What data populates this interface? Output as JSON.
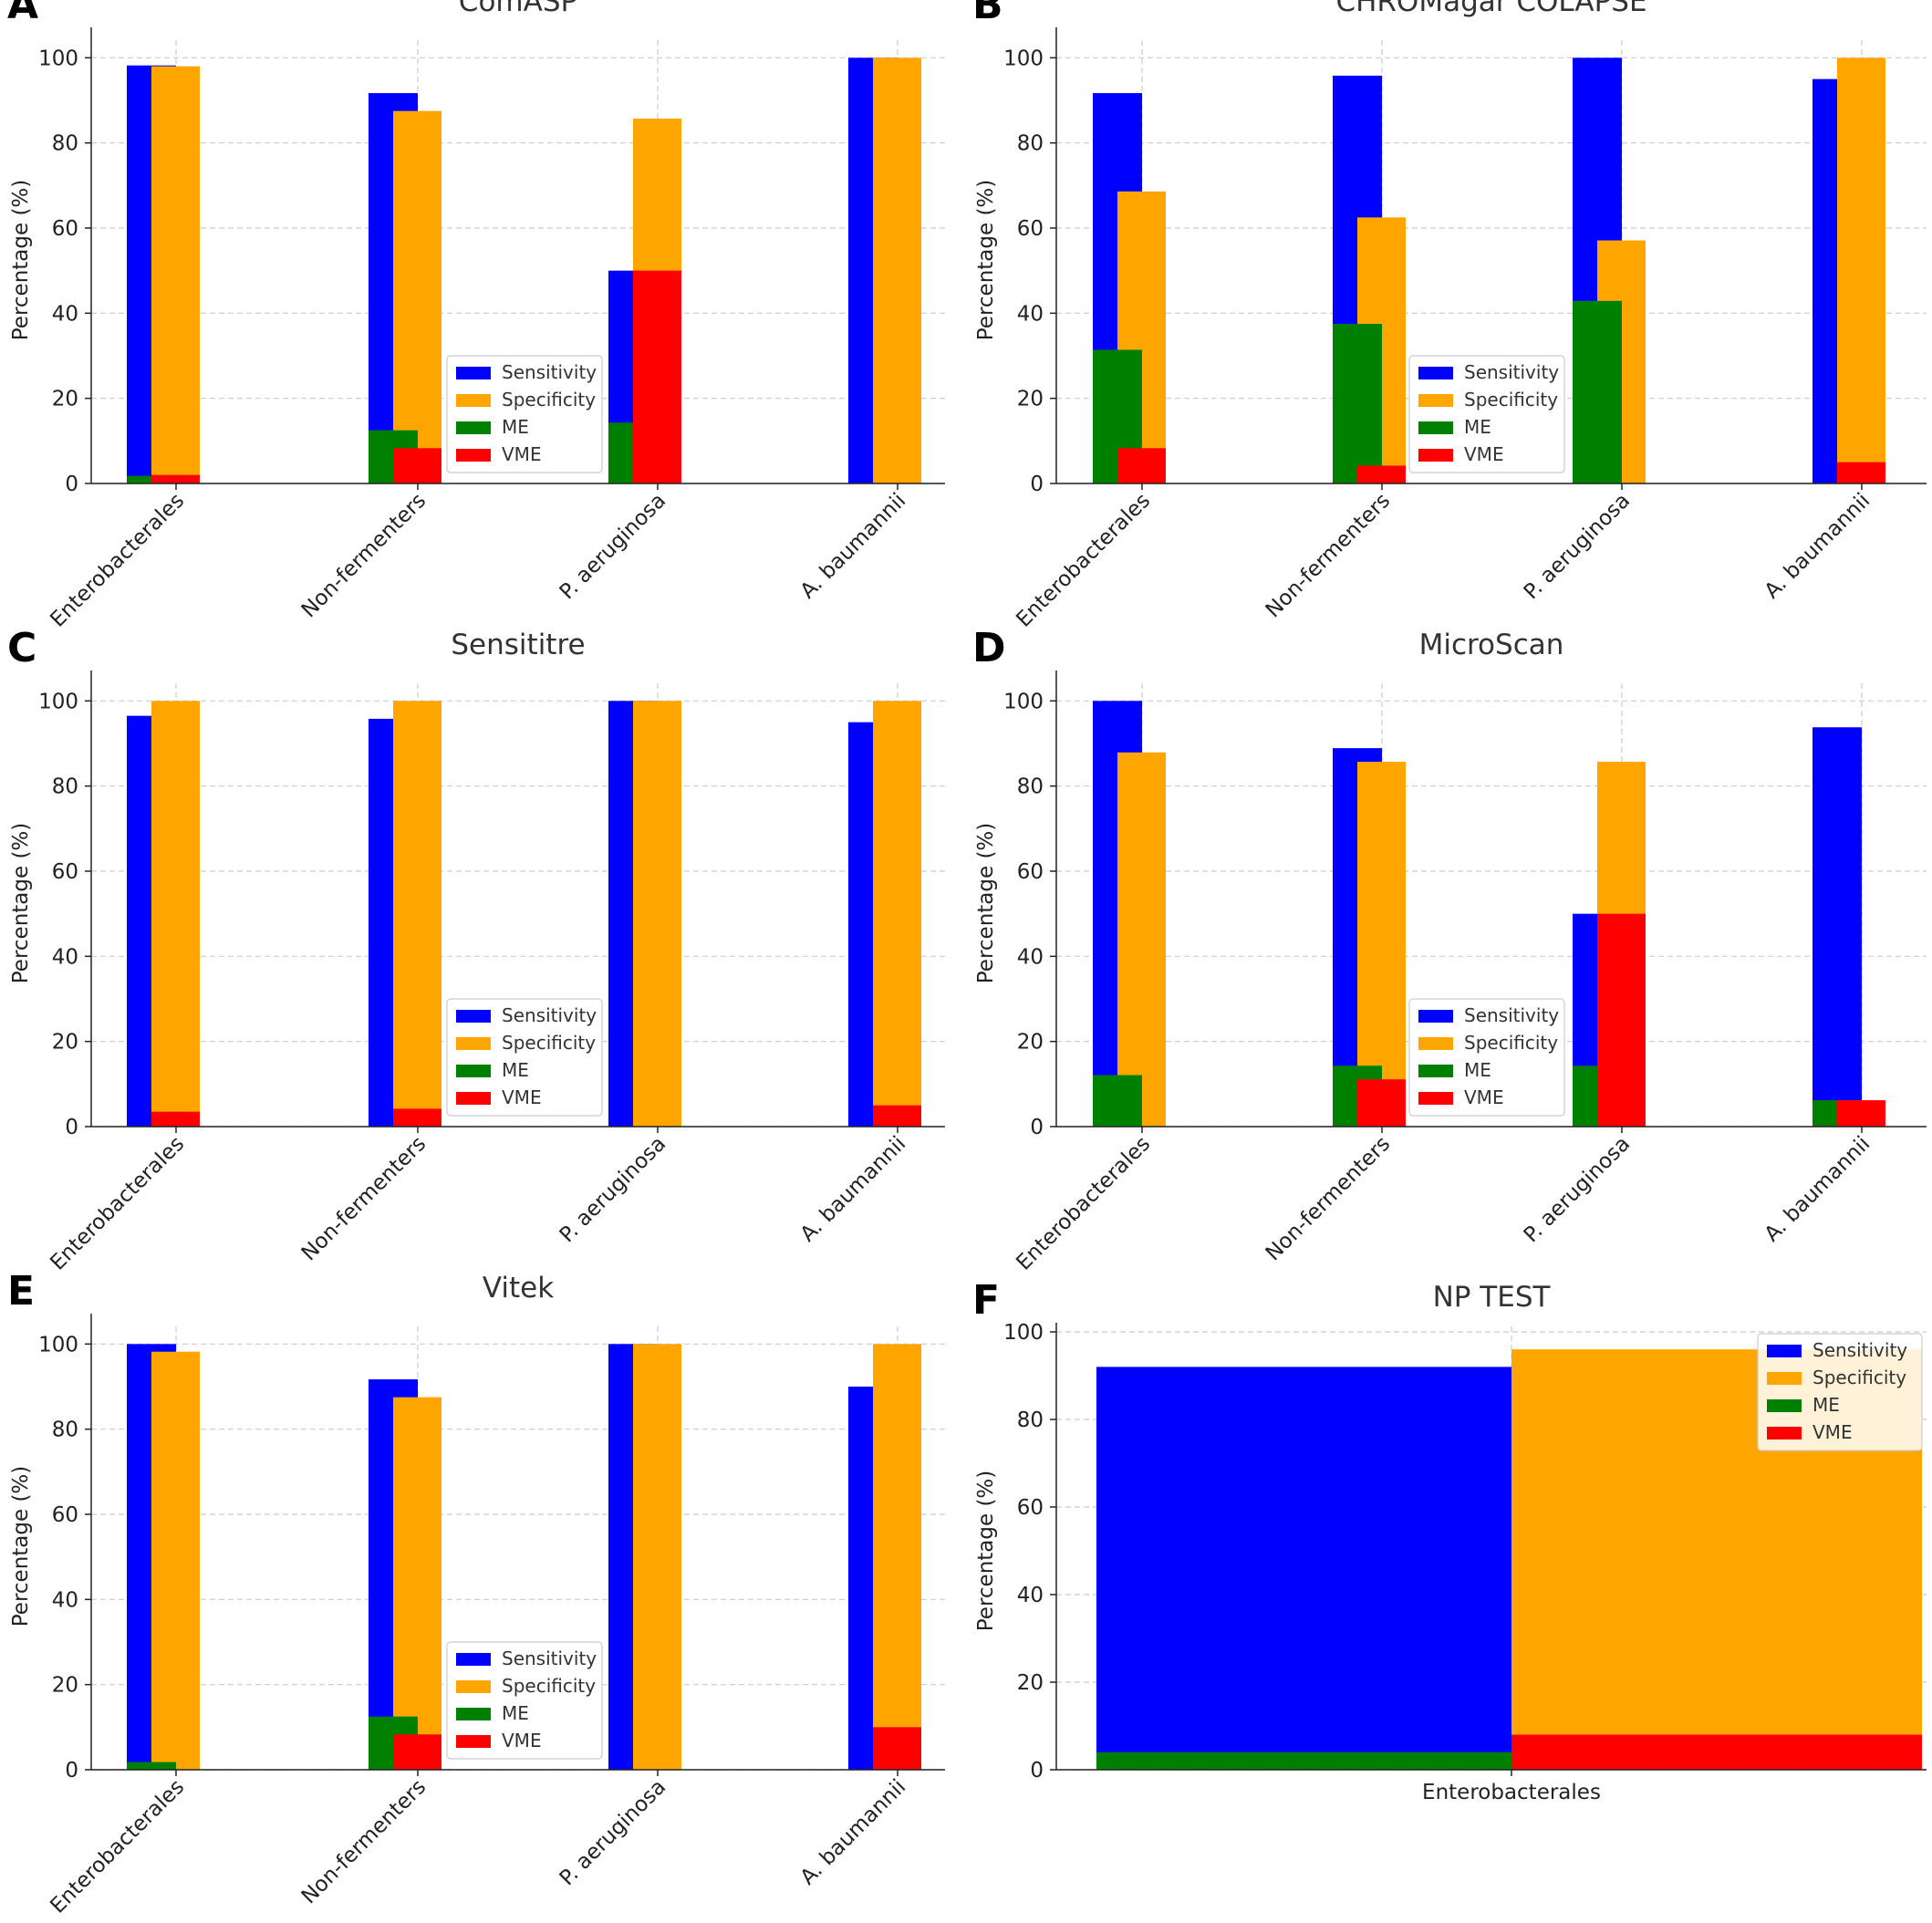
{
  "figure": {
    "colors": {
      "sensitivity": "#0000ff",
      "specificity": "#ffa500",
      "me": "#008000",
      "vme": "#ff0000"
    },
    "legend_labels": [
      "Sensitivity",
      "Specificity",
      "ME",
      "VME"
    ]
  },
  "chart_data": [
    {
      "panel": "A",
      "type": "bar",
      "title": "ComASP",
      "ylabel": "Percentage (%)",
      "ylim": [
        0,
        105
      ],
      "yticks": [
        0,
        20,
        40,
        60,
        80,
        100
      ],
      "grid": true,
      "legend": "lower-center",
      "categories": [
        "Enterobacterales",
        "Non-fermenters",
        "P. aeruginosa",
        "A. baumannii"
      ],
      "series": [
        {
          "name": "Sensitivity",
          "values": [
            98.2,
            91.7,
            50,
            100
          ]
        },
        {
          "name": "Specificity",
          "values": [
            98,
            87.5,
            85.7,
            100
          ]
        },
        {
          "name": "ME",
          "values": [
            1.8,
            12.5,
            14.3,
            0
          ]
        },
        {
          "name": "VME",
          "values": [
            2,
            8.3,
            50,
            0
          ]
        }
      ]
    },
    {
      "panel": "B",
      "type": "bar",
      "title": "CHROMagar COLAPSE",
      "ylabel": "Percentage (%)",
      "ylim": [
        0,
        105
      ],
      "yticks": [
        0,
        20,
        40,
        60,
        80,
        100
      ],
      "grid": true,
      "legend": "lower-center",
      "categories": [
        "Enterobacterales",
        "Non-fermenters",
        "P. aeruginosa",
        "A. baumannii"
      ],
      "series": [
        {
          "name": "Sensitivity",
          "values": [
            91.7,
            95.8,
            100,
            95
          ]
        },
        {
          "name": "Specificity",
          "values": [
            68.6,
            62.5,
            57.1,
            100
          ]
        },
        {
          "name": "ME",
          "values": [
            31.4,
            37.5,
            42.9,
            0
          ]
        },
        {
          "name": "VME",
          "values": [
            8.3,
            4.2,
            0,
            5
          ]
        }
      ]
    },
    {
      "panel": "C",
      "type": "bar",
      "title": "Sensititre",
      "ylabel": "Percentage (%)",
      "ylim": [
        0,
        105
      ],
      "yticks": [
        0,
        20,
        40,
        60,
        80,
        100
      ],
      "grid": true,
      "legend": "lower-center",
      "categories": [
        "Enterobacterales",
        "Non-fermenters",
        "P. aeruginosa",
        "A. baumannii"
      ],
      "series": [
        {
          "name": "Sensitivity",
          "values": [
            96.5,
            95.8,
            100,
            95
          ]
        },
        {
          "name": "Specificity",
          "values": [
            100,
            100,
            100,
            100
          ]
        },
        {
          "name": "ME",
          "values": [
            0,
            0,
            0,
            0
          ]
        },
        {
          "name": "VME",
          "values": [
            3.5,
            4.2,
            0,
            5
          ]
        }
      ]
    },
    {
      "panel": "D",
      "type": "bar",
      "title": "MicroScan",
      "ylabel": "Percentage (%)",
      "ylim": [
        0,
        105
      ],
      "yticks": [
        0,
        20,
        40,
        60,
        80,
        100
      ],
      "grid": true,
      "legend": "lower-center",
      "categories": [
        "Enterobacterales",
        "Non-fermenters",
        "P. aeruginosa",
        "A. baumannii"
      ],
      "series": [
        {
          "name": "Sensitivity",
          "values": [
            100,
            88.9,
            50,
            93.8
          ]
        },
        {
          "name": "Specificity",
          "values": [
            87.9,
            85.7,
            85.7,
            0
          ]
        },
        {
          "name": "ME",
          "values": [
            12.1,
            14.3,
            14.3,
            6.2
          ]
        },
        {
          "name": "VME",
          "values": [
            0,
            11.1,
            50,
            6.2
          ]
        }
      ]
    },
    {
      "panel": "E",
      "type": "bar",
      "title": "Vitek",
      "ylabel": "Percentage (%)",
      "ylim": [
        0,
        105
      ],
      "yticks": [
        0,
        20,
        40,
        60,
        80,
        100
      ],
      "grid": true,
      "legend": "lower-center",
      "categories": [
        "Enterobacterales",
        "Non-fermenters",
        "P. aeruginosa",
        "A. baumannii"
      ],
      "series": [
        {
          "name": "Sensitivity",
          "values": [
            100,
            91.7,
            100,
            90
          ]
        },
        {
          "name": "Specificity",
          "values": [
            98.2,
            87.5,
            100,
            100
          ]
        },
        {
          "name": "ME",
          "values": [
            1.8,
            12.5,
            0,
            0
          ]
        },
        {
          "name": "VME",
          "values": [
            0,
            8.3,
            0,
            10
          ]
        }
      ]
    },
    {
      "panel": "F",
      "type": "bar",
      "title": "NP TEST",
      "ylabel": "Percentage (%)",
      "ylim": [
        0,
        100
      ],
      "yticks": [
        0,
        20,
        40,
        60,
        80,
        100
      ],
      "grid": true,
      "legend": "upper-right",
      "categories": [
        "Enterobacterales"
      ],
      "series": [
        {
          "name": "Sensitivity",
          "values": [
            92
          ]
        },
        {
          "name": "Specificity",
          "values": [
            96
          ]
        },
        {
          "name": "ME",
          "values": [
            4
          ]
        },
        {
          "name": "VME",
          "values": [
            8
          ]
        }
      ]
    }
  ]
}
